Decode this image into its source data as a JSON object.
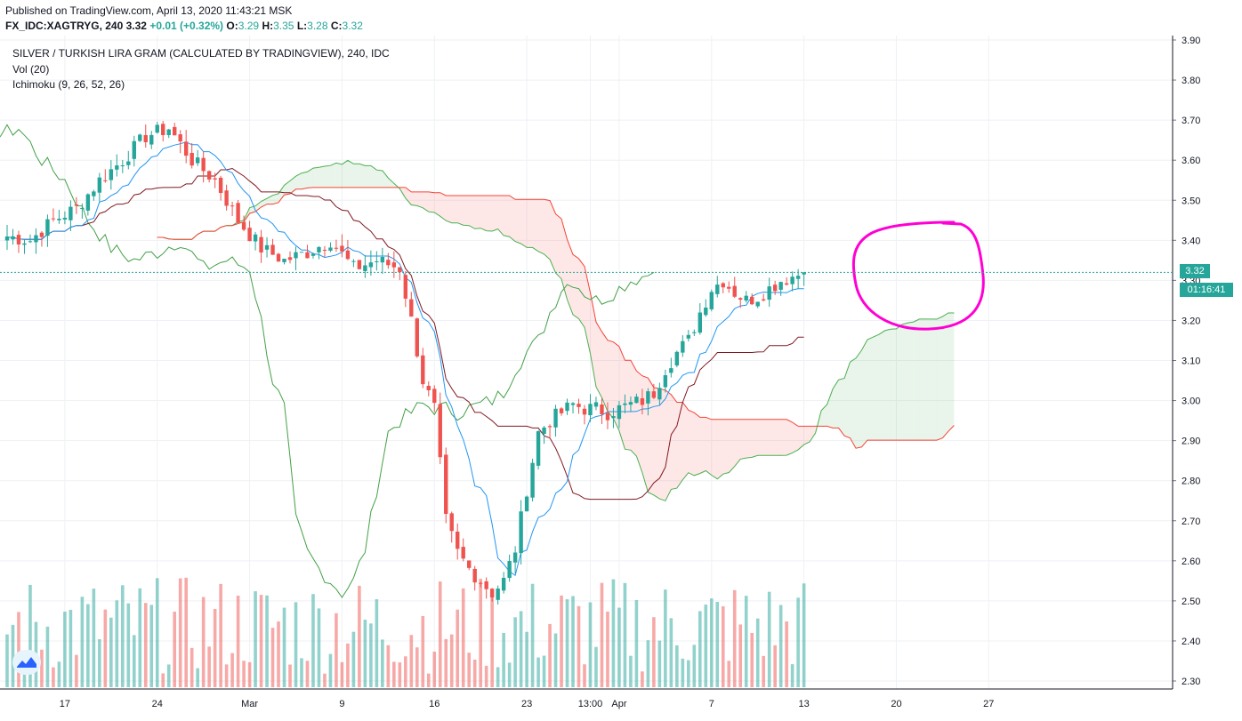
{
  "header": {
    "published": "Published on TradingView.com, April 13, 2020 11:43:21 MSK",
    "symbol": "FX_IDC:XAGTRYG, 240",
    "last": "3.32",
    "change": "+0.01 (+0.32%)",
    "o_label": "O:",
    "o_value": "3.29",
    "h_label": "H:",
    "h_value": "3.35",
    "l_label": "L:",
    "l_value": "3.28",
    "c_label": "C:",
    "c_value": "3.32"
  },
  "legend": {
    "title": "SILVER / TURKISH LIRA GRAM (CALCULATED BY TRADINGVIEW), 240, IDC",
    "volume": "Vol (20)",
    "ichimoku": "Ichimoku (9, 26, 52, 26)"
  },
  "price_tag": "3.32",
  "timer_tag": "01:16:41",
  "icons": {
    "logo": "tradingview-logo-icon"
  },
  "colors": {
    "up": "#26a69a",
    "down": "#ef5350",
    "tenkan": "#2196f3",
    "kijun": "#801922",
    "chikou": "#43a047",
    "span_a": "#4caf50",
    "span_b": "#f44336",
    "annotation": "#ff00d4"
  },
  "chart_data": {
    "type": "candlestick",
    "y_axis": {
      "min": 2.28,
      "max": 3.9,
      "ticks": [
        "3.90",
        "3.80",
        "3.70",
        "3.60",
        "3.50",
        "3.40",
        "3.30",
        "3.20",
        "3.10",
        "3.00",
        "2.90",
        "2.80",
        "2.70",
        "2.60",
        "2.50",
        "2.40",
        "2.30"
      ]
    },
    "x_axis": {
      "ticks": [
        "17",
        "24",
        "Mar",
        "9",
        "16",
        "23",
        "13:00",
        "Apr",
        "7",
        "13",
        "20",
        "27"
      ],
      "tick_bar_index": [
        10,
        26,
        42,
        58,
        74,
        90,
        101,
        106,
        122,
        138,
        154,
        170
      ]
    },
    "last_price": 3.32,
    "price_anchors": [
      [
        0,
        3.41
      ],
      [
        4,
        3.4
      ],
      [
        8,
        3.45
      ],
      [
        12,
        3.48
      ],
      [
        16,
        3.55
      ],
      [
        20,
        3.6
      ],
      [
        24,
        3.66
      ],
      [
        28,
        3.68
      ],
      [
        32,
        3.6
      ],
      [
        36,
        3.55
      ],
      [
        40,
        3.45
      ],
      [
        44,
        3.38
      ],
      [
        48,
        3.35
      ],
      [
        52,
        3.37
      ],
      [
        56,
        3.4
      ],
      [
        60,
        3.33
      ],
      [
        64,
        3.35
      ],
      [
        68,
        3.33
      ],
      [
        70,
        3.2
      ],
      [
        72,
        3.05
      ],
      [
        74,
        2.98
      ],
      [
        76,
        2.7
      ],
      [
        78,
        2.62
      ],
      [
        80,
        2.58
      ],
      [
        82,
        2.55
      ],
      [
        84,
        2.52
      ],
      [
        86,
        2.55
      ],
      [
        88,
        2.63
      ],
      [
        90,
        2.78
      ],
      [
        92,
        2.92
      ],
      [
        94,
        2.95
      ],
      [
        96,
        2.97
      ],
      [
        98,
        2.99
      ],
      [
        100,
        2.98
      ],
      [
        102,
        2.98
      ],
      [
        104,
        2.97
      ],
      [
        106,
        2.98
      ],
      [
        108,
        2.99
      ],
      [
        110,
        3.0
      ],
      [
        112,
        3.02
      ],
      [
        114,
        3.08
      ],
      [
        116,
        3.12
      ],
      [
        118,
        3.15
      ],
      [
        120,
        3.22
      ],
      [
        122,
        3.28
      ],
      [
        124,
        3.3
      ],
      [
        126,
        3.27
      ],
      [
        128,
        3.25
      ],
      [
        130,
        3.26
      ],
      [
        132,
        3.28
      ],
      [
        134,
        3.3
      ],
      [
        136,
        3.31
      ],
      [
        138,
        3.32
      ]
    ],
    "series": [
      {
        "name": "Vol (20)",
        "type": "volume"
      },
      {
        "name": "Ichimoku (9, 26, 52, 26)",
        "type": "ichimoku"
      }
    ]
  }
}
